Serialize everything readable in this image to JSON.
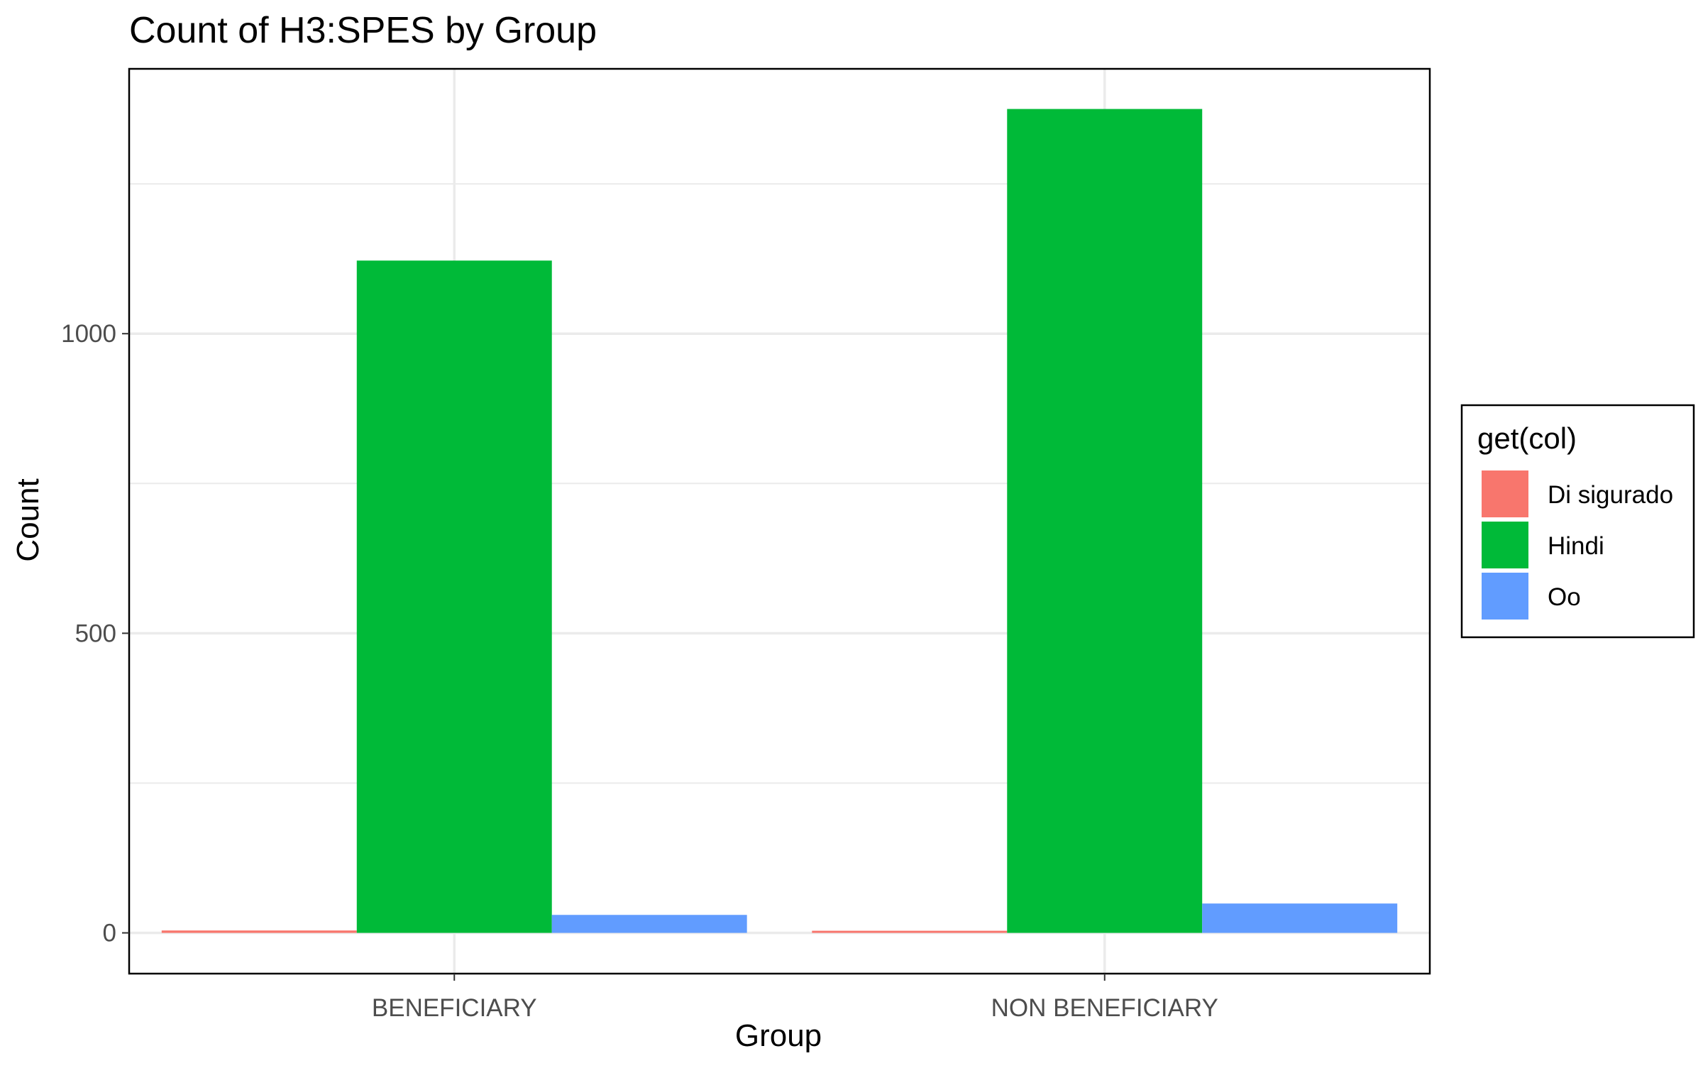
{
  "chart_data": {
    "type": "bar",
    "title": "Count of H3:SPES by Group",
    "xlabel": "Group",
    "ylabel": "Count",
    "categories": [
      "BENEFICIARY",
      "NON BENEFICIARY"
    ],
    "series": [
      {
        "name": "Di sigurado",
        "values": [
          4,
          3
        ],
        "color": "#F8766D"
      },
      {
        "name": "Hindi",
        "values": [
          1122,
          1375
        ],
        "color": "#00BA38"
      },
      {
        "name": "Oo",
        "values": [
          30,
          49
        ],
        "color": "#619CFF"
      }
    ],
    "ylim": [
      -68,
      1442
    ],
    "yticks": [
      0,
      500,
      1000
    ],
    "yticks_minor": [
      250,
      750,
      1250
    ],
    "grid": true,
    "legend": {
      "title": "get(col)",
      "position": "right"
    }
  }
}
